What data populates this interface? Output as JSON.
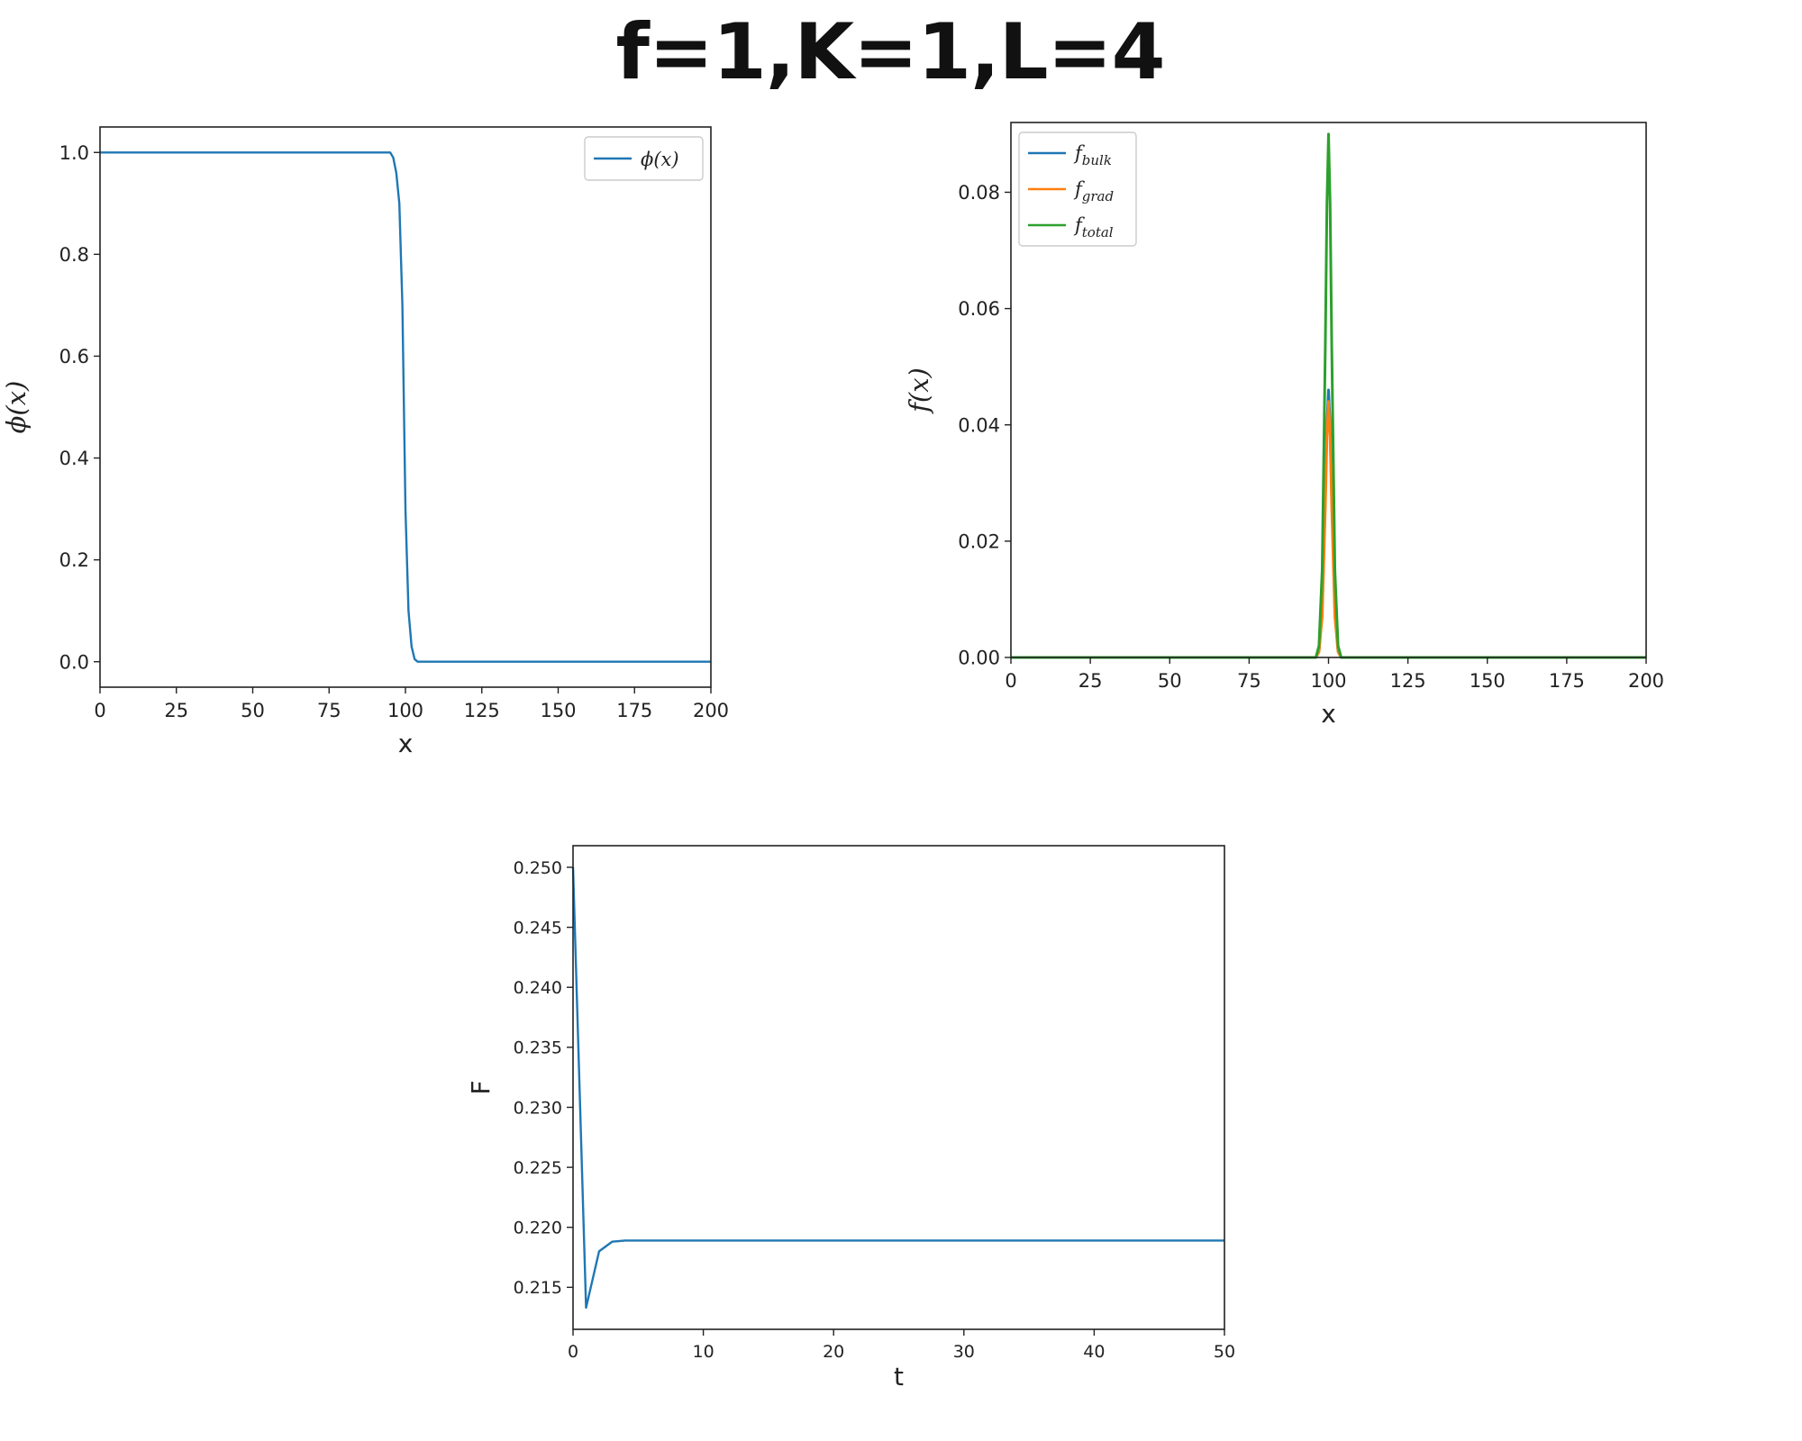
{
  "page_title": "f=1,K=1,L=4",
  "colors": {
    "blue": "#1f77b4",
    "orange": "#ff7f0e",
    "green": "#2ca02c",
    "axis": "#222222"
  },
  "chart_data": [
    {
      "type": "line",
      "title": "",
      "xlabel": "x",
      "ylabel": "ϕ(x)",
      "xlim": [
        0,
        200
      ],
      "ylim": [
        -0.05,
        1.05
      ],
      "xticks": [
        0,
        25,
        50,
        75,
        100,
        125,
        150,
        175,
        200
      ],
      "yticks": [
        0.0,
        0.2,
        0.4,
        0.6,
        0.8,
        1.0
      ],
      "xtick_labels": [
        "0",
        "25",
        "50",
        "75",
        "100",
        "125",
        "150",
        "175",
        "200"
      ],
      "ytick_labels": [
        "0.0",
        "0.2",
        "0.4",
        "0.6",
        "0.8",
        "1.0"
      ],
      "grid": false,
      "legend": "top-right",
      "series": [
        {
          "name": "ϕ(x)",
          "color": "#1f77b4",
          "x": [
            0,
            90,
            95,
            96,
            97,
            98,
            99,
            100,
            101,
            102,
            103,
            104,
            105,
            110,
            200
          ],
          "y": [
            1.0,
            1.0,
            1.0,
            0.99,
            0.96,
            0.9,
            0.7,
            0.3,
            0.1,
            0.03,
            0.005,
            0.0,
            0.0,
            0.0,
            0.0
          ]
        }
      ]
    },
    {
      "type": "line",
      "title": "",
      "xlabel": "x",
      "ylabel": "f(x)",
      "xlim": [
        0,
        200
      ],
      "ylim": [
        0.0,
        0.092
      ],
      "xticks": [
        0,
        25,
        50,
        75,
        100,
        125,
        150,
        175,
        200
      ],
      "yticks": [
        0.0,
        0.02,
        0.04,
        0.06,
        0.08
      ],
      "xtick_labels": [
        "0",
        "25",
        "50",
        "75",
        "100",
        "125",
        "150",
        "175",
        "200"
      ],
      "ytick_labels": [
        "0.00",
        "0.02",
        "0.04",
        "0.06",
        "0.08"
      ],
      "grid": false,
      "legend": "top-left",
      "series": [
        {
          "name": "f_bulk",
          "name_main": "f",
          "name_sub": "bulk",
          "color": "#1f77b4",
          "x": [
            0,
            96,
            97,
            98,
            99,
            99.5,
            100,
            100.5,
            101,
            102,
            103,
            104,
            200
          ],
          "y": [
            0,
            0,
            0.001,
            0.008,
            0.028,
            0.04,
            0.046,
            0.04,
            0.028,
            0.008,
            0.001,
            0,
            0
          ]
        },
        {
          "name": "f_grad",
          "name_main": "f",
          "name_sub": "grad",
          "color": "#ff7f0e",
          "x": [
            0,
            96,
            97,
            98,
            99,
            99.5,
            100,
            100.5,
            101,
            102,
            103,
            104,
            200
          ],
          "y": [
            0,
            0,
            0.001,
            0.007,
            0.026,
            0.038,
            0.044,
            0.038,
            0.026,
            0.007,
            0.001,
            0,
            0
          ]
        },
        {
          "name": "f_total",
          "name_main": "f",
          "name_sub": "total",
          "color": "#2ca02c",
          "x": [
            0,
            96,
            97,
            98,
            99,
            99.5,
            100,
            100.5,
            101,
            102,
            103,
            104,
            200
          ],
          "y": [
            0,
            0,
            0.002,
            0.015,
            0.054,
            0.078,
            0.09,
            0.078,
            0.054,
            0.015,
            0.002,
            0,
            0
          ]
        }
      ]
    },
    {
      "type": "line",
      "title": "",
      "xlabel": "t",
      "ylabel": "F",
      "xlim": [
        0,
        50
      ],
      "ylim": [
        0.2115,
        0.2518
      ],
      "xticks": [
        0,
        10,
        20,
        30,
        40,
        50
      ],
      "yticks": [
        0.215,
        0.22,
        0.225,
        0.23,
        0.235,
        0.24,
        0.245,
        0.25
      ],
      "xtick_labels": [
        "0",
        "10",
        "20",
        "30",
        "40",
        "50"
      ],
      "ytick_labels": [
        "0.215",
        "0.220",
        "0.225",
        "0.230",
        "0.235",
        "0.240",
        "0.245",
        "0.250"
      ],
      "grid": false,
      "legend": "none",
      "series": [
        {
          "name": "",
          "color": "#1f77b4",
          "x": [
            0,
            1,
            2,
            3,
            4,
            5,
            10,
            20,
            30,
            40,
            50
          ],
          "y": [
            0.25,
            0.2133,
            0.218,
            0.2188,
            0.2189,
            0.2189,
            0.2189,
            0.2189,
            0.2189,
            0.2189,
            0.2189
          ]
        }
      ]
    }
  ]
}
